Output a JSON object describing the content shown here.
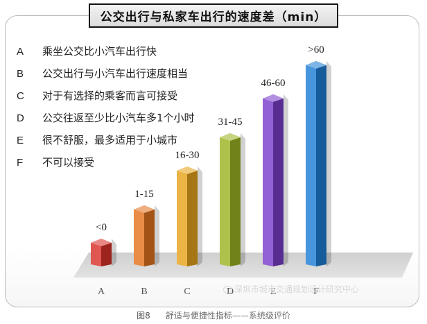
{
  "chart_data": {
    "type": "bar",
    "title": "公交出行与私家车出行的速度差（min）",
    "categories": [
      "A",
      "B",
      "C",
      "D",
      "E",
      "F"
    ],
    "value_labels": [
      "<0",
      "1-15",
      "16-30",
      "31-45",
      "46-60",
      ">60"
    ],
    "values": [
      1,
      2.2,
      3.6,
      4.8,
      6.2,
      7.4
    ],
    "legend": [
      {
        "key": "A",
        "text": "乘坐公交比小汽车出行快"
      },
      {
        "key": "B",
        "text": "公交出行与小汽车出行速度相当"
      },
      {
        "key": "C",
        "text": "对于有选择的乘客而言可接受"
      },
      {
        "key": "D",
        "text": "公交往返至少比小汽车多1个小时"
      },
      {
        "key": "E",
        "text": "很不舒服，最多适用于小城市"
      },
      {
        "key": "F",
        "text": "不可以接受"
      }
    ],
    "colors": [
      "#d9312a",
      "#e4731e",
      "#e6a31c",
      "#9cb523",
      "#7a3ec9",
      "#1f7fd6"
    ],
    "xlabel": "",
    "ylabel": "",
    "grid": false
  },
  "caption": {
    "figure": "图8",
    "text": "舒适与便捷性指标——系统级评价"
  },
  "watermark": "深圳市城市交通规划设计研究中心"
}
